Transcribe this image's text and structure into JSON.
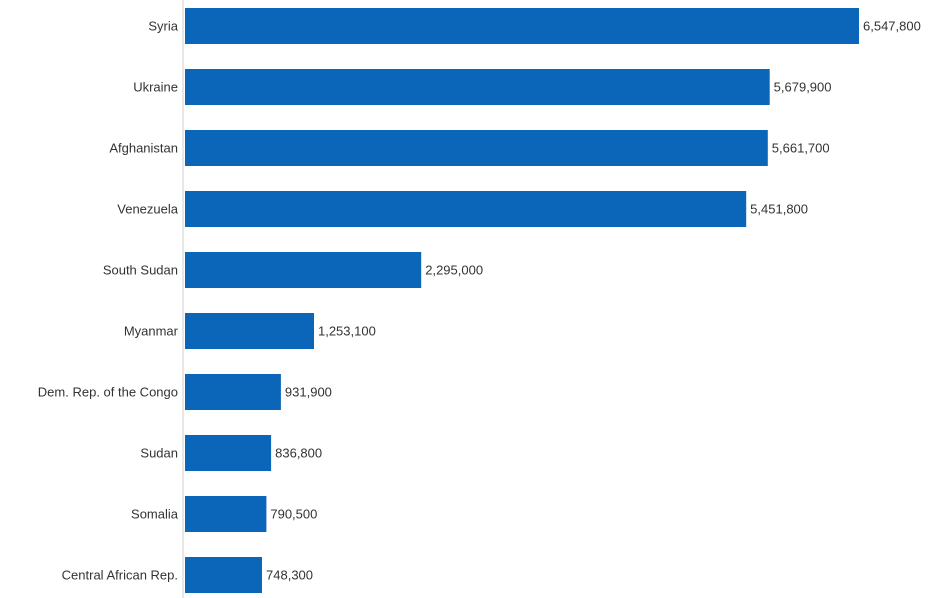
{
  "chart_data": {
    "type": "bar",
    "orientation": "horizontal",
    "categories": [
      "Syria",
      "Ukraine",
      "Afghanistan",
      "Venezuela",
      "South Sudan",
      "Myanmar",
      "Dem. Rep. of the Congo",
      "Sudan",
      "Somalia",
      "Central African Rep."
    ],
    "values": [
      6547800,
      5679900,
      5661700,
      5451800,
      2295000,
      1253100,
      931900,
      836800,
      790500,
      748300
    ],
    "value_labels": [
      "6,547,800",
      "5,679,900",
      "5,661,700",
      "5,451,800",
      "2,295,000",
      "1,253,100",
      "931,900",
      "836,800",
      "790,500",
      "748,300"
    ],
    "bar_color": "#0b65b8",
    "grid": false,
    "legend": "none"
  }
}
